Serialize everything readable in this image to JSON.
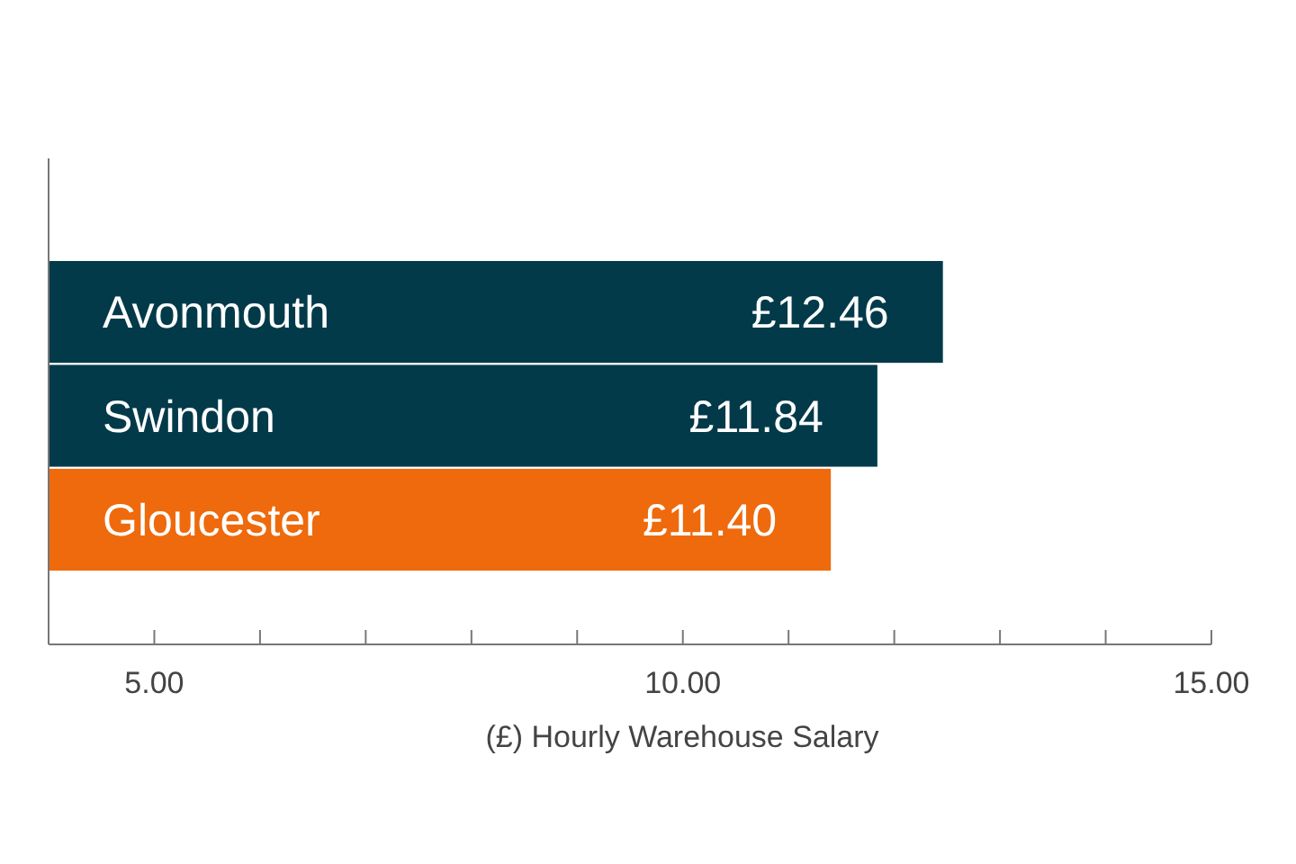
{
  "chart_data": {
    "type": "bar",
    "orientation": "horizontal",
    "xlabel": "(£) Hourly Warehouse Salary",
    "categories": [
      "Avonmouth",
      "Swindon",
      "Gloucester"
    ],
    "values": [
      12.46,
      11.84,
      11.4
    ],
    "colors": [
      "#033a4a",
      "#033a4a",
      "#ee6a0c"
    ],
    "value_labels": [
      "£12.46",
      "£11.84",
      "£11.40"
    ],
    "xlim": [
      4,
      15
    ],
    "xticks": [
      {
        "value": 5,
        "label": "5.00"
      },
      {
        "value": 6,
        "label": null
      },
      {
        "value": 7,
        "label": null
      },
      {
        "value": 8,
        "label": null
      },
      {
        "value": 9,
        "label": null
      },
      {
        "value": 10,
        "label": "10.00"
      },
      {
        "value": 11,
        "label": null
      },
      {
        "value": 12,
        "label": null
      },
      {
        "value": 13,
        "label": null
      },
      {
        "value": 14,
        "label": null
      },
      {
        "value": 15,
        "label": "15.00"
      }
    ],
    "grid": false
  }
}
